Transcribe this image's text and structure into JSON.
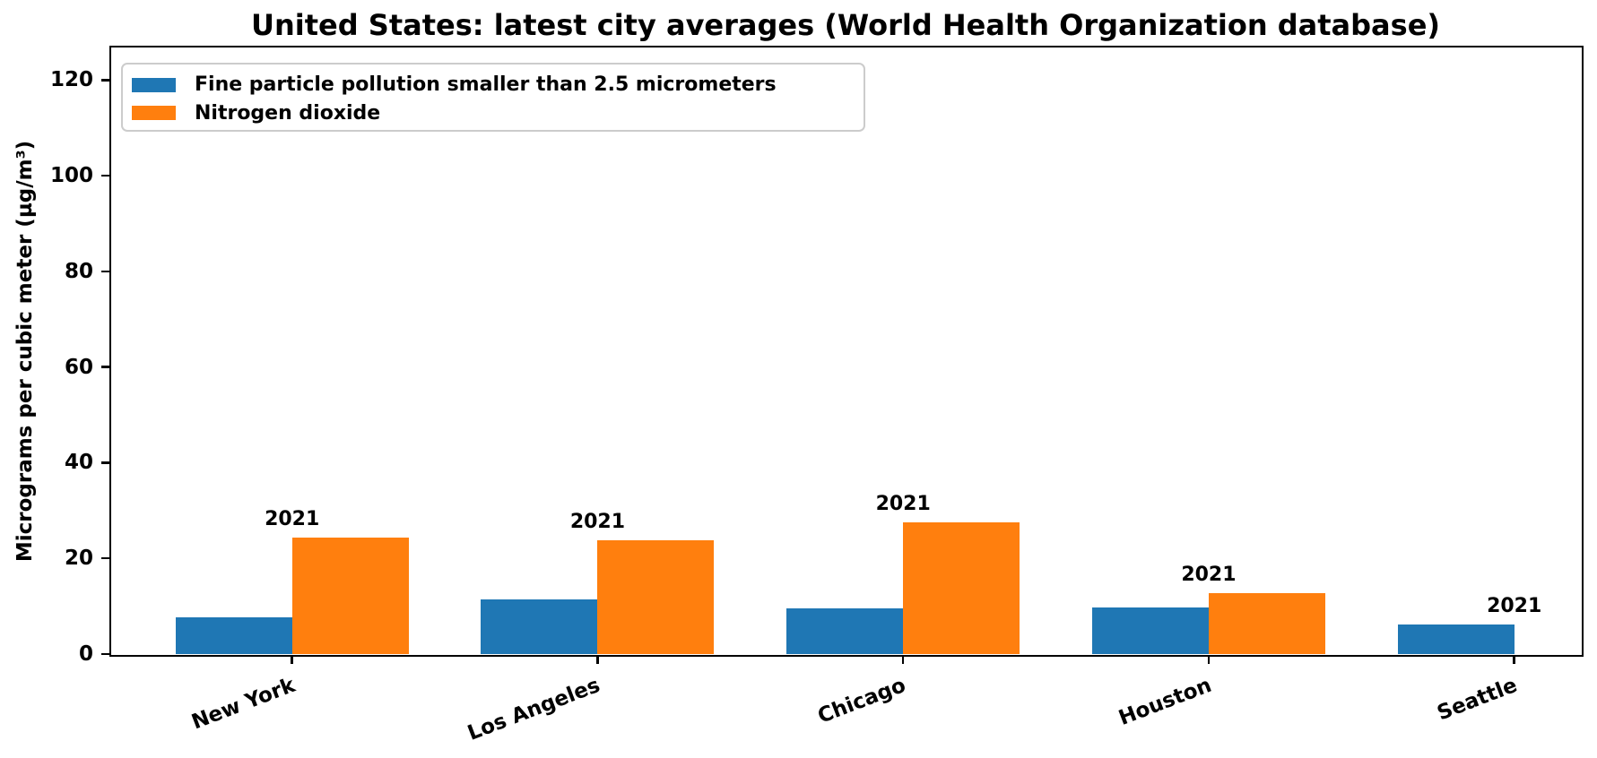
{
  "chart_data": {
    "type": "bar",
    "title": "United States: latest city averages (World Health Organization database)",
    "ylabel": "Micrograms per cubic meter (µg/m³)",
    "categories": [
      "New York",
      "Los Angeles",
      "Chicago",
      "Houston",
      "Seattle"
    ],
    "series": [
      {
        "name": "Fine particle pollution smaller than 2.5 micrometers",
        "color": "#1f77b4",
        "values": [
          7.7,
          11.5,
          9.6,
          9.8,
          6.2
        ]
      },
      {
        "name": "Nitrogen dioxide",
        "color": "#ff7f0e",
        "values": [
          24.3,
          23.8,
          27.6,
          12.8,
          null
        ]
      }
    ],
    "annotations": [
      "2021",
      "2021",
      "2021",
      "2021",
      "2021"
    ],
    "yticks": [
      "0",
      "20",
      "40",
      "60",
      "80",
      "100",
      "120"
    ],
    "ylim": [
      0,
      126.7
    ],
    "grid": false,
    "legend_position": "upper left",
    "x_tick_rotation_deg": 21,
    "axis_color": "#000000",
    "background": "#ffffff"
  }
}
